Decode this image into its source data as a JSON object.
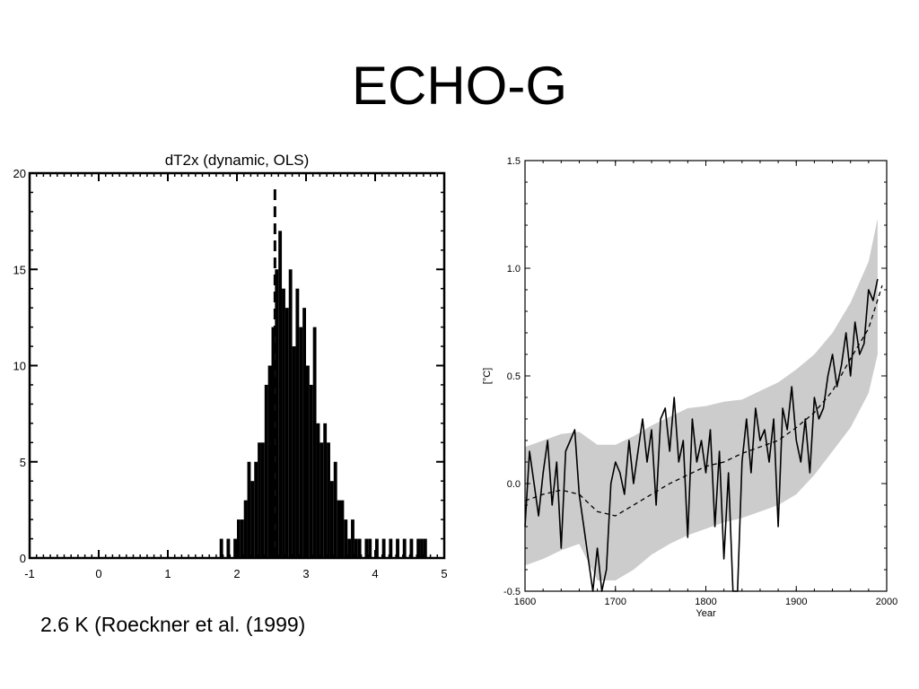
{
  "slide": {
    "title": "ECHO-G",
    "caption": "2.6 K (Roeckner et al. (1999)"
  },
  "colors": {
    "background": "#ffffff",
    "ink": "#000000",
    "band": "#cccccc"
  },
  "chart_data": [
    {
      "type": "bar",
      "title": "dT2x (dynamic, OLS)",
      "xlabel": "",
      "ylabel": "",
      "xlim": [
        -1,
        5
      ],
      "ylim": [
        0,
        20
      ],
      "x_ticks": [
        "-1",
        "0",
        "1",
        "2",
        "3",
        "4",
        "5"
      ],
      "y_ticks": [
        "0",
        "5",
        "10",
        "15",
        "20"
      ],
      "grid": false,
      "reference_line": {
        "x": 2.55,
        "style": "dashed"
      },
      "bin_width": 0.05,
      "x": [
        1.75,
        1.8,
        1.85,
        1.9,
        1.95,
        2.0,
        2.05,
        2.1,
        2.15,
        2.2,
        2.25,
        2.3,
        2.35,
        2.4,
        2.45,
        2.5,
        2.55,
        2.6,
        2.65,
        2.7,
        2.75,
        2.8,
        2.85,
        2.9,
        2.95,
        3.0,
        3.05,
        3.1,
        3.15,
        3.2,
        3.25,
        3.3,
        3.35,
        3.4,
        3.45,
        3.5,
        3.55,
        3.6,
        3.65,
        3.7,
        3.75,
        3.8,
        3.85,
        3.9,
        3.95,
        4.0,
        4.05,
        4.1,
        4.15,
        4.2,
        4.25,
        4.3,
        4.35,
        4.4,
        4.45,
        4.5,
        4.55,
        4.6,
        4.65,
        4.7
      ],
      "values": [
        1,
        0,
        1,
        0,
        1,
        2,
        2,
        3,
        5,
        4,
        5,
        6,
        6,
        9,
        10,
        12,
        15,
        17,
        14,
        13,
        15,
        11,
        14,
        12,
        13,
        10,
        9,
        12,
        7,
        6,
        7,
        6,
        4,
        5,
        3,
        3,
        2,
        1,
        2,
        1,
        1,
        0,
        1,
        1,
        0,
        1,
        0,
        1,
        0,
        1,
        0,
        1,
        0,
        1,
        0,
        1,
        0,
        1,
        1,
        1
      ]
    },
    {
      "type": "line",
      "title": "",
      "xlabel": "Year",
      "ylabel": "[°C]",
      "xlim": [
        1600,
        2000
      ],
      "ylim": [
        -0.5,
        1.5
      ],
      "x_ticks": [
        "1600",
        "1700",
        "1800",
        "1900",
        "2000"
      ],
      "y_ticks": [
        "-0.5",
        "0.0",
        "0.5",
        "1.0",
        "1.5"
      ],
      "grid": false,
      "band": {
        "x": [
          1600,
          1620,
          1640,
          1660,
          1680,
          1700,
          1720,
          1740,
          1760,
          1780,
          1800,
          1820,
          1840,
          1860,
          1880,
          1900,
          1920,
          1940,
          1960,
          1980,
          1990
        ],
        "upper": [
          0.17,
          0.2,
          0.23,
          0.24,
          0.18,
          0.18,
          0.22,
          0.27,
          0.31,
          0.35,
          0.36,
          0.38,
          0.39,
          0.43,
          0.47,
          0.53,
          0.6,
          0.7,
          0.84,
          1.03,
          1.23
        ],
        "lower": [
          -0.38,
          -0.35,
          -0.31,
          -0.28,
          -0.45,
          -0.45,
          -0.4,
          -0.33,
          -0.28,
          -0.24,
          -0.21,
          -0.18,
          -0.16,
          -0.13,
          -0.1,
          -0.05,
          0.04,
          0.15,
          0.26,
          0.42,
          0.6
        ]
      },
      "series": [
        {
          "style": "solid",
          "x": [
            1600,
            1605,
            1610,
            1615,
            1620,
            1625,
            1630,
            1635,
            1640,
            1645,
            1650,
            1655,
            1660,
            1665,
            1670,
            1675,
            1680,
            1685,
            1690,
            1695,
            1700,
            1705,
            1710,
            1715,
            1720,
            1725,
            1730,
            1735,
            1740,
            1745,
            1750,
            1755,
            1760,
            1765,
            1770,
            1775,
            1780,
            1785,
            1790,
            1795,
            1800,
            1805,
            1810,
            1815,
            1820,
            1825,
            1830,
            1835,
            1840,
            1845,
            1850,
            1855,
            1860,
            1865,
            1870,
            1875,
            1880,
            1885,
            1890,
            1895,
            1900,
            1905,
            1910,
            1915,
            1920,
            1925,
            1930,
            1935,
            1940,
            1945,
            1950,
            1955,
            1960,
            1965,
            1970,
            1975,
            1980,
            1985,
            1990
          ],
          "values": [
            -0.2,
            0.15,
            0.0,
            -0.15,
            0.05,
            0.2,
            -0.1,
            0.1,
            -0.3,
            0.15,
            0.2,
            0.25,
            -0.05,
            -0.2,
            -0.35,
            -0.5,
            -0.3,
            -0.5,
            -0.4,
            0.0,
            0.1,
            0.05,
            -0.05,
            0.2,
            0.0,
            0.15,
            0.3,
            0.1,
            0.25,
            -0.1,
            0.3,
            0.35,
            0.15,
            0.4,
            0.1,
            0.2,
            -0.25,
            0.3,
            0.1,
            0.2,
            0.05,
            0.25,
            -0.2,
            0.15,
            -0.35,
            0.05,
            -0.5,
            -0.5,
            0.1,
            0.3,
            0.05,
            0.35,
            0.2,
            0.25,
            0.1,
            0.3,
            -0.2,
            0.35,
            0.25,
            0.45,
            0.2,
            0.1,
            0.3,
            0.05,
            0.4,
            0.3,
            0.35,
            0.5,
            0.6,
            0.45,
            0.55,
            0.7,
            0.5,
            0.75,
            0.6,
            0.65,
            0.9,
            0.85,
            0.95
          ]
        },
        {
          "style": "dashed",
          "x": [
            1600,
            1620,
            1640,
            1660,
            1680,
            1700,
            1720,
            1740,
            1760,
            1780,
            1800,
            1820,
            1840,
            1860,
            1880,
            1900,
            1920,
            1940,
            1960,
            1980,
            1995
          ],
          "values": [
            -0.08,
            -0.05,
            -0.03,
            -0.05,
            -0.13,
            -0.15,
            -0.1,
            -0.05,
            0.0,
            0.04,
            0.08,
            0.1,
            0.14,
            0.17,
            0.2,
            0.26,
            0.33,
            0.43,
            0.58,
            0.72,
            0.92
          ]
        }
      ]
    }
  ]
}
